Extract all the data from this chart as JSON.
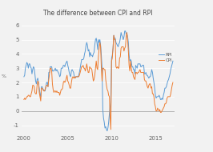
{
  "title": "The difference between CPI and RPI",
  "rpi_color": "#5B9BD5",
  "cpi_color": "#ED7D31",
  "background_color": "#F2F2F2",
  "plot_bg_color": "#F2F2F2",
  "legend_rpi": "RPI",
  "legend_cpi": "CPI",
  "xlim_start": 1999.7,
  "xlim_end": 2017.2,
  "ylim": [
    -1.6,
    6.5
  ],
  "yticks": [
    -1,
    0,
    1,
    2,
    3,
    4,
    5,
    6
  ],
  "xtick_labels": [
    "2000",
    "2005",
    "2010",
    "2015"
  ],
  "xtick_values": [
    2000,
    2005,
    2010,
    2015
  ],
  "grid_color": "#FFFFFF",
  "zero_line_color": "#AAAAAA",
  "rpi_dates": [
    2000.0,
    2000.083,
    2000.167,
    2000.25,
    2000.333,
    2000.417,
    2000.5,
    2000.583,
    2000.667,
    2000.75,
    2000.833,
    2000.917,
    2001.0,
    2001.083,
    2001.167,
    2001.25,
    2001.333,
    2001.417,
    2001.5,
    2001.583,
    2001.667,
    2001.75,
    2001.833,
    2001.917,
    2002.0,
    2002.083,
    2002.167,
    2002.25,
    2002.333,
    2002.417,
    2002.5,
    2002.583,
    2002.667,
    2002.75,
    2002.833,
    2002.917,
    2003.0,
    2003.083,
    2003.167,
    2003.25,
    2003.333,
    2003.417,
    2003.5,
    2003.583,
    2003.667,
    2003.75,
    2003.833,
    2003.917,
    2004.0,
    2004.083,
    2004.167,
    2004.25,
    2004.333,
    2004.417,
    2004.5,
    2004.583,
    2004.667,
    2004.75,
    2004.833,
    2004.917,
    2005.0,
    2005.083,
    2005.167,
    2005.25,
    2005.333,
    2005.417,
    2005.5,
    2005.583,
    2005.667,
    2005.75,
    2005.833,
    2005.917,
    2006.0,
    2006.083,
    2006.167,
    2006.25,
    2006.333,
    2006.417,
    2006.5,
    2006.583,
    2006.667,
    2006.75,
    2006.833,
    2006.917,
    2007.0,
    2007.083,
    2007.167,
    2007.25,
    2007.333,
    2007.417,
    2007.5,
    2007.583,
    2007.667,
    2007.75,
    2007.833,
    2007.917,
    2008.0,
    2008.083,
    2008.167,
    2008.25,
    2008.333,
    2008.417,
    2008.5,
    2008.583,
    2008.667,
    2008.75,
    2008.833,
    2008.917,
    2009.0,
    2009.083,
    2009.167,
    2009.25,
    2009.333,
    2009.417,
    2009.5,
    2009.583,
    2009.667,
    2009.75,
    2009.833,
    2009.917,
    2010.0,
    2010.083,
    2010.167,
    2010.25,
    2010.333,
    2010.417,
    2010.5,
    2010.583,
    2010.667,
    2010.75,
    2010.833,
    2010.917,
    2011.0,
    2011.083,
    2011.167,
    2011.25,
    2011.333,
    2011.417,
    2011.5,
    2011.583,
    2011.667,
    2011.75,
    2011.833,
    2011.917,
    2012.0,
    2012.083,
    2012.167,
    2012.25,
    2012.333,
    2012.417,
    2012.5,
    2012.583,
    2012.667,
    2012.75,
    2012.833,
    2012.917,
    2013.0,
    2013.083,
    2013.167,
    2013.25,
    2013.333,
    2013.417,
    2013.5,
    2013.583,
    2013.667,
    2013.75,
    2013.833,
    2013.917,
    2014.0,
    2014.083,
    2014.167,
    2014.25,
    2014.333,
    2014.417,
    2014.5,
    2014.583,
    2014.667,
    2014.75,
    2014.833,
    2014.917,
    2015.0,
    2015.083,
    2015.167,
    2015.25,
    2015.333,
    2015.417,
    2015.5,
    2015.583,
    2015.667,
    2015.75,
    2015.833,
    2015.917,
    2016.0,
    2016.083,
    2016.167,
    2016.25,
    2016.333,
    2016.417,
    2016.5,
    2016.583,
    2016.667,
    2016.75,
    2016.833,
    2016.917,
    2017.0
  ],
  "rpi_values": [
    2.4,
    2.5,
    3.0,
    3.2,
    3.4,
    3.3,
    3.0,
    3.3,
    3.3,
    3.1,
    3.0,
    2.6,
    2.9,
    3.1,
    3.0,
    2.6,
    2.1,
    1.9,
    2.2,
    2.3,
    1.9,
    1.6,
    1.2,
    1.0,
    1.7,
    1.7,
    1.5,
    1.5,
    1.4,
    1.4,
    1.7,
    2.0,
    2.0,
    1.7,
    2.7,
    2.7,
    3.1,
    3.1,
    3.1,
    2.8,
    2.8,
    2.8,
    2.9,
    3.0,
    2.8,
    2.9,
    2.8,
    2.7,
    2.6,
    2.4,
    2.5,
    3.0,
    3.0,
    3.0,
    3.2,
    3.2,
    3.1,
    3.3,
    3.4,
    3.5,
    3.2,
    3.0,
    2.7,
    2.5,
    2.4,
    2.8,
    2.9,
    2.8,
    2.7,
    2.4,
    2.3,
    2.4,
    2.4,
    2.4,
    2.4,
    2.5,
    2.7,
    3.0,
    3.3,
    3.6,
    3.6,
    3.6,
    3.7,
    4.0,
    4.2,
    4.6,
    4.8,
    4.6,
    4.2,
    4.3,
    3.8,
    4.1,
    3.9,
    3.9,
    3.8,
    4.0,
    4.1,
    4.6,
    5.0,
    5.1,
    4.8,
    4.3,
    5.0,
    4.8,
    5.0,
    4.6,
    3.9,
    3.0,
    0.1,
    -0.5,
    -0.8,
    -1.2,
    -1.1,
    -1.3,
    -1.4,
    -1.2,
    -0.8,
    -0.2,
    0.3,
    0.6,
    3.7,
    3.9,
    4.4,
    5.3,
    5.1,
    5.1,
    4.8,
    4.7,
    4.6,
    4.5,
    4.7,
    4.8,
    5.1,
    5.5,
    5.3,
    5.2,
    5.0,
    5.2,
    5.6,
    5.6,
    5.4,
    5.4,
    5.2,
    4.8,
    3.9,
    3.5,
    3.6,
    3.5,
    3.1,
    3.1,
    2.9,
    2.9,
    2.6,
    3.2,
    3.1,
    3.0,
    3.3,
    3.3,
    3.3,
    3.3,
    3.1,
    3.1,
    3.2,
    3.2,
    3.2,
    2.6,
    2.6,
    2.7,
    2.5,
    2.5,
    2.4,
    2.3,
    2.4,
    2.4,
    2.6,
    2.9,
    2.7,
    2.3,
    2.0,
    1.6,
    1.1,
    0.9,
    1.0,
    1.0,
    1.0,
    1.1,
    1.0,
    0.8,
    0.8,
    0.9,
    0.8,
    1.1,
    1.3,
    1.6,
    1.6,
    1.7,
    1.9,
    2.1,
    2.2,
    2.4,
    2.6,
    2.9,
    3.1,
    3.3,
    3.5
  ],
  "cpi_values": [
    0.8,
    0.9,
    0.8,
    0.9,
    1.0,
    1.0,
    1.1,
    1.1,
    1.0,
    1.0,
    1.2,
    1.4,
    1.8,
    1.8,
    1.7,
    1.3,
    1.2,
    1.2,
    1.8,
    2.1,
    2.0,
    1.3,
    1.0,
    0.7,
    1.6,
    1.6,
    1.5,
    1.4,
    1.4,
    1.5,
    1.7,
    1.8,
    1.8,
    1.7,
    2.2,
    2.6,
    3.0,
    3.0,
    2.8,
    1.9,
    1.5,
    1.3,
    1.4,
    1.4,
    1.3,
    1.4,
    1.3,
    1.3,
    1.3,
    1.1,
    1.3,
    1.5,
    1.5,
    1.6,
    2.0,
    2.1,
    2.0,
    2.1,
    2.3,
    2.5,
    2.1,
    2.0,
    1.8,
    1.6,
    1.6,
    2.0,
    2.3,
    2.4,
    2.3,
    2.4,
    2.3,
    2.4,
    2.4,
    2.4,
    2.4,
    2.4,
    2.5,
    2.7,
    2.9,
    3.1,
    3.1,
    3.2,
    3.0,
    3.0,
    2.8,
    3.0,
    3.3,
    3.0,
    2.7,
    2.7,
    3.1,
    3.0,
    3.0,
    2.9,
    2.5,
    2.1,
    2.2,
    2.5,
    3.0,
    3.5,
    3.0,
    2.9,
    3.8,
    4.4,
    4.8,
    4.5,
    3.0,
    2.1,
    3.0,
    3.0,
    2.9,
    2.9,
    2.2,
    1.8,
    1.5,
    1.4,
    1.1,
    1.0,
    -0.4,
    -1.3,
    3.5,
    3.7,
    4.4,
    5.3,
    5.0,
    5.0,
    3.1,
    3.0,
    3.1,
    3.0,
    3.0,
    3.7,
    3.8,
    4.4,
    4.5,
    4.5,
    4.5,
    4.2,
    4.4,
    4.5,
    5.2,
    5.5,
    5.0,
    4.2,
    3.2,
    2.8,
    3.5,
    3.0,
    2.7,
    2.7,
    2.4,
    2.3,
    2.2,
    2.7,
    2.7,
    2.6,
    2.7,
    2.7,
    2.8,
    2.9,
    2.7,
    2.7,
    2.7,
    2.7,
    2.7,
    2.2,
    2.1,
    2.1,
    1.9,
    1.7,
    1.6,
    1.8,
    1.9,
    1.9,
    1.6,
    1.7,
    1.2,
    1.2,
    1.0,
    0.5,
    0.3,
    0.0,
    0.0,
    0.2,
    0.1,
    0.0,
    0.1,
    -0.1,
    -0.1,
    0.0,
    0.1,
    0.2,
    0.3,
    0.5,
    0.5,
    0.6,
    0.9,
    1.0,
    1.0,
    1.0,
    1.0,
    1.2,
    1.5,
    1.8,
    2.0
  ]
}
